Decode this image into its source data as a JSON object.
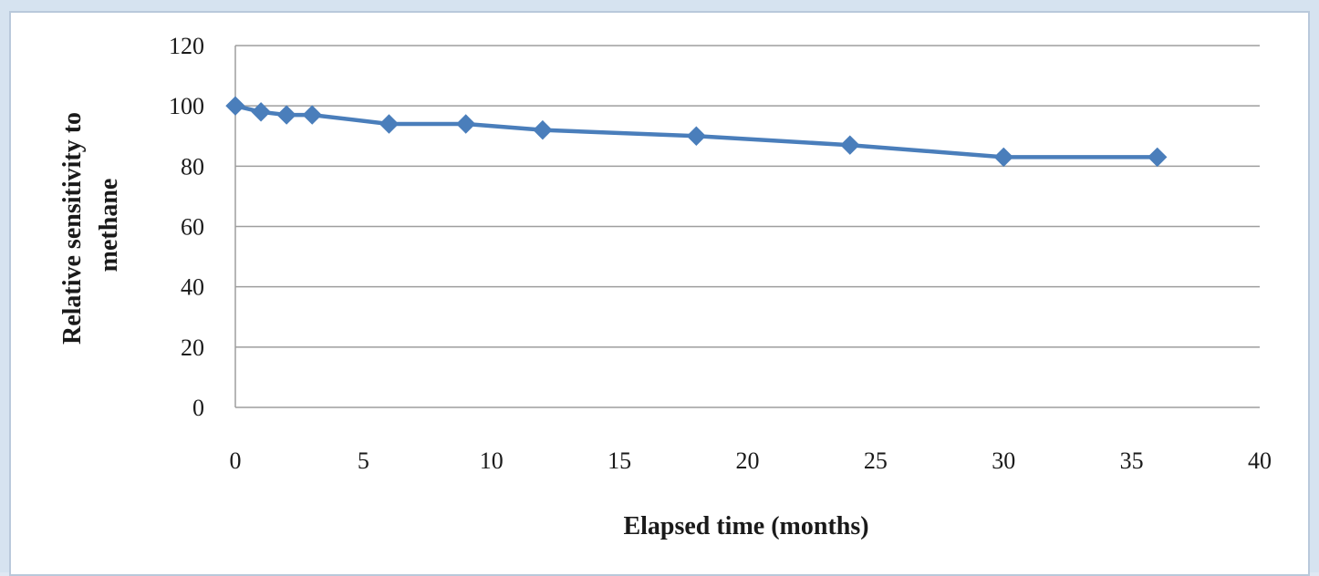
{
  "chart_data": {
    "type": "line",
    "title": "",
    "xlabel": "Elapsed time (months)",
    "ylabel_lines": [
      "Relative sensitivity to",
      "methane"
    ],
    "xlim": [
      0,
      40
    ],
    "ylim": [
      0,
      120
    ],
    "xticks": [
      0,
      5,
      10,
      15,
      20,
      25,
      30,
      35,
      40
    ],
    "yticks": [
      0,
      20,
      40,
      60,
      80,
      100,
      120
    ],
    "grid": "horizontal",
    "legend": "none",
    "series": [
      {
        "color": "#4a7ebb",
        "marker": "diamond",
        "x": [
          0,
          1,
          2,
          3,
          6,
          9,
          12,
          18,
          24,
          30,
          36
        ],
        "y": [
          100,
          98,
          97,
          97,
          94,
          94,
          92,
          90,
          87,
          83,
          83
        ]
      }
    ]
  }
}
